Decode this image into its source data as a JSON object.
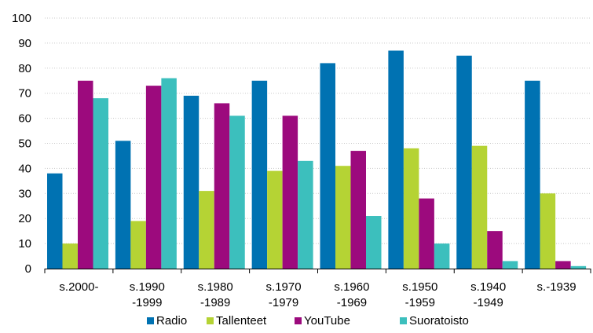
{
  "chart_data": {
    "type": "bar",
    "categories": [
      [
        "s.2000-",
        ""
      ],
      [
        "s.1990",
        "-1999"
      ],
      [
        "s.1980",
        "-1989"
      ],
      [
        "s.1970",
        "-1979"
      ],
      [
        "s.1960",
        "-1969"
      ],
      [
        "s.1950",
        "-1959"
      ],
      [
        "s.1940",
        "-1949"
      ],
      [
        "s.-1939",
        ""
      ]
    ],
    "series": [
      {
        "name": "Radio",
        "color": "#0072B2",
        "values": [
          38,
          51,
          69,
          75,
          82,
          87,
          85,
          75
        ]
      },
      {
        "name": "Tallenteet",
        "color": "#B5D334",
        "values": [
          10,
          19,
          31,
          39,
          41,
          48,
          49,
          30
        ]
      },
      {
        "name": "YouTube",
        "color": "#9C0A7D",
        "values": [
          75,
          73,
          66,
          61,
          47,
          28,
          15,
          3
        ]
      },
      {
        "name": "Suoratoisto",
        "color": "#3CBFBD",
        "values": [
          68,
          76,
          61,
          43,
          21,
          10,
          3,
          1
        ]
      }
    ],
    "ylim": [
      0,
      100
    ],
    "yticks": [
      0,
      10,
      20,
      30,
      40,
      50,
      60,
      70,
      80,
      90,
      100
    ],
    "grid": true,
    "legend_position": "bottom",
    "title": "",
    "xlabel": "",
    "ylabel": ""
  }
}
